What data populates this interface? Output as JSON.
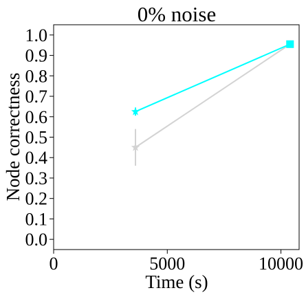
{
  "chart_data": {
    "type": "line",
    "title": "0% noise",
    "xlabel": "Time (s)",
    "ylabel": "Node correctness",
    "xlim": [
      0,
      10800
    ],
    "ylim": [
      -0.05,
      1.05
    ],
    "x_ticks": [
      0,
      5000,
      10000
    ],
    "x_tick_labels": [
      "0",
      "5000",
      "10000"
    ],
    "y_ticks": [
      0.0,
      0.1,
      0.2,
      0.3,
      0.4,
      0.5,
      0.6,
      0.7,
      0.8,
      0.9,
      1.0
    ],
    "y_tick_labels": [
      "0.0",
      "0.1",
      "0.2",
      "0.3",
      "0.4",
      "0.5",
      "0.6",
      "0.7",
      "0.8",
      "0.9",
      "1.0"
    ],
    "grid": false,
    "legend": "none",
    "series": [
      {
        "color": "#d3d3d3",
        "x": [
          3600,
          10400
        ],
        "y": [
          0.45,
          0.955
        ],
        "yerr": [
          0.09,
          0.005
        ],
        "markers": [
          "star",
          "square"
        ]
      },
      {
        "color": "#00ffff",
        "x": [
          3600,
          10400
        ],
        "y": [
          0.625,
          0.955
        ],
        "yerr": [
          0.02,
          0.005
        ],
        "markers": [
          "star",
          "square"
        ]
      }
    ]
  }
}
